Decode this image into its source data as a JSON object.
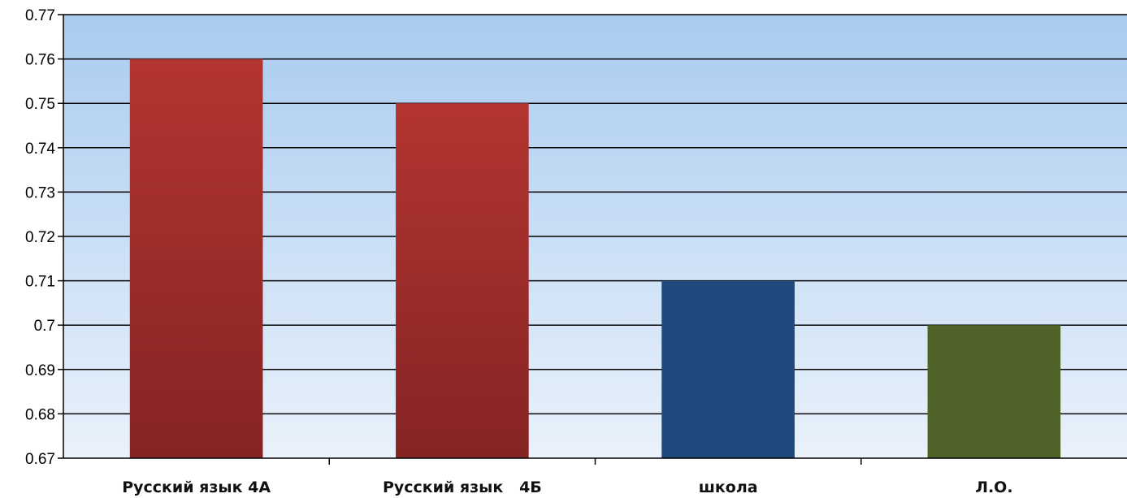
{
  "chart_data": {
    "type": "bar",
    "categories": [
      "Русский язык 4А",
      "Русский язык   4Б",
      "школа",
      "Л.О."
    ],
    "values": [
      0.76,
      0.75,
      0.71,
      0.7
    ],
    "colors": [
      "#a52a2a",
      "#a52a2a",
      "#1f497d",
      "#4f6228"
    ],
    "ylim": [
      0.67,
      0.77
    ],
    "yticks": [
      "0.67",
      "0.68",
      "0.69",
      "0.7",
      "0.71",
      "0.72",
      "0.73",
      "0.74",
      "0.75",
      "0.76",
      "0.77"
    ],
    "grid": true,
    "legend": "none",
    "plot_background": [
      "#a9cbf0",
      "#eaf2fb"
    ]
  }
}
